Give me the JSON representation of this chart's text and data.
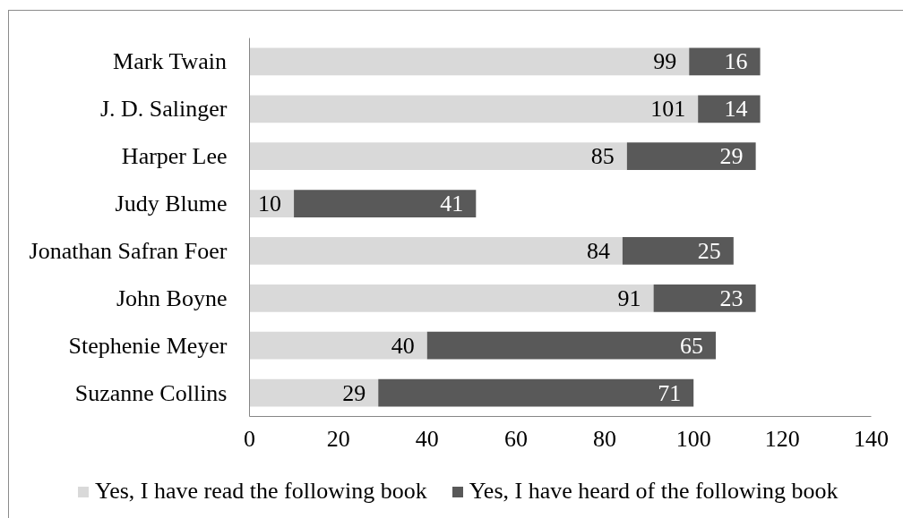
{
  "chart_data": {
    "type": "bar",
    "orientation": "horizontal",
    "stacked": true,
    "categories": [
      "Mark Twain",
      "J. D. Salinger",
      "Harper Lee",
      "Judy Blume",
      "Jonathan Safran Foer",
      "John Boyne",
      "Stephenie Meyer",
      "Suzanne Collins"
    ],
    "series": [
      {
        "name": "Yes, I have read the following book",
        "color": "#d9d9d9",
        "values": [
          99,
          101,
          85,
          10,
          84,
          91,
          40,
          29
        ]
      },
      {
        "name": "Yes, I have heard of the following book",
        "color": "#595959",
        "values": [
          16,
          14,
          29,
          41,
          25,
          23,
          65,
          71
        ]
      }
    ],
    "xlim": [
      0,
      140
    ],
    "xticks": [
      0,
      20,
      40,
      60,
      80,
      100,
      120,
      140
    ],
    "data_labels": true,
    "legend": "bottom",
    "grid": false
  }
}
